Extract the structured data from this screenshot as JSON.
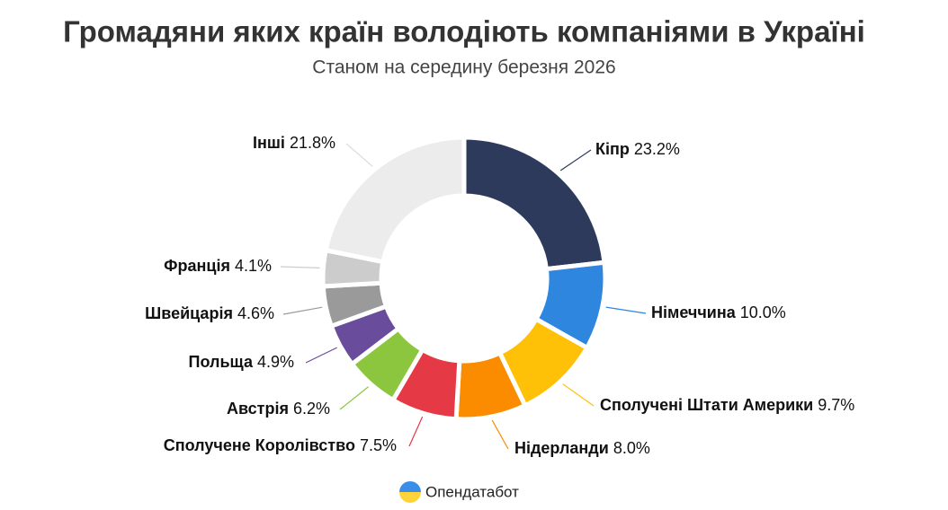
{
  "chart_data": {
    "type": "donut",
    "title": "Громадяни яких країн володіють компаніями в Україні",
    "subtitle": "Станом на середину березня 2026",
    "categories": [
      "Кіпр",
      "Німеччина",
      "Сполучені Штати Америки",
      "Нідерланди",
      "Сполучене Королівство",
      "Австрія",
      "Польща",
      "Швейцарія",
      "Франція",
      "Інші"
    ],
    "values": [
      23.2,
      10.0,
      9.7,
      8.0,
      7.5,
      6.2,
      4.9,
      4.6,
      4.1,
      21.8
    ],
    "value_labels": [
      "23.2%",
      "10.0%",
      "9.7%",
      "8.0%",
      "7.5%",
      "6.2%",
      "4.9%",
      "4.6%",
      "4.1%",
      "21.8%"
    ],
    "colors": [
      "#2d3a5c",
      "#2e86de",
      "#ffc107",
      "#fb8c00",
      "#e53945",
      "#8cc63f",
      "#6a4c9c",
      "#9a9a9a",
      "#cccccc",
      "#ececec"
    ],
    "source": "Опендатабот"
  }
}
